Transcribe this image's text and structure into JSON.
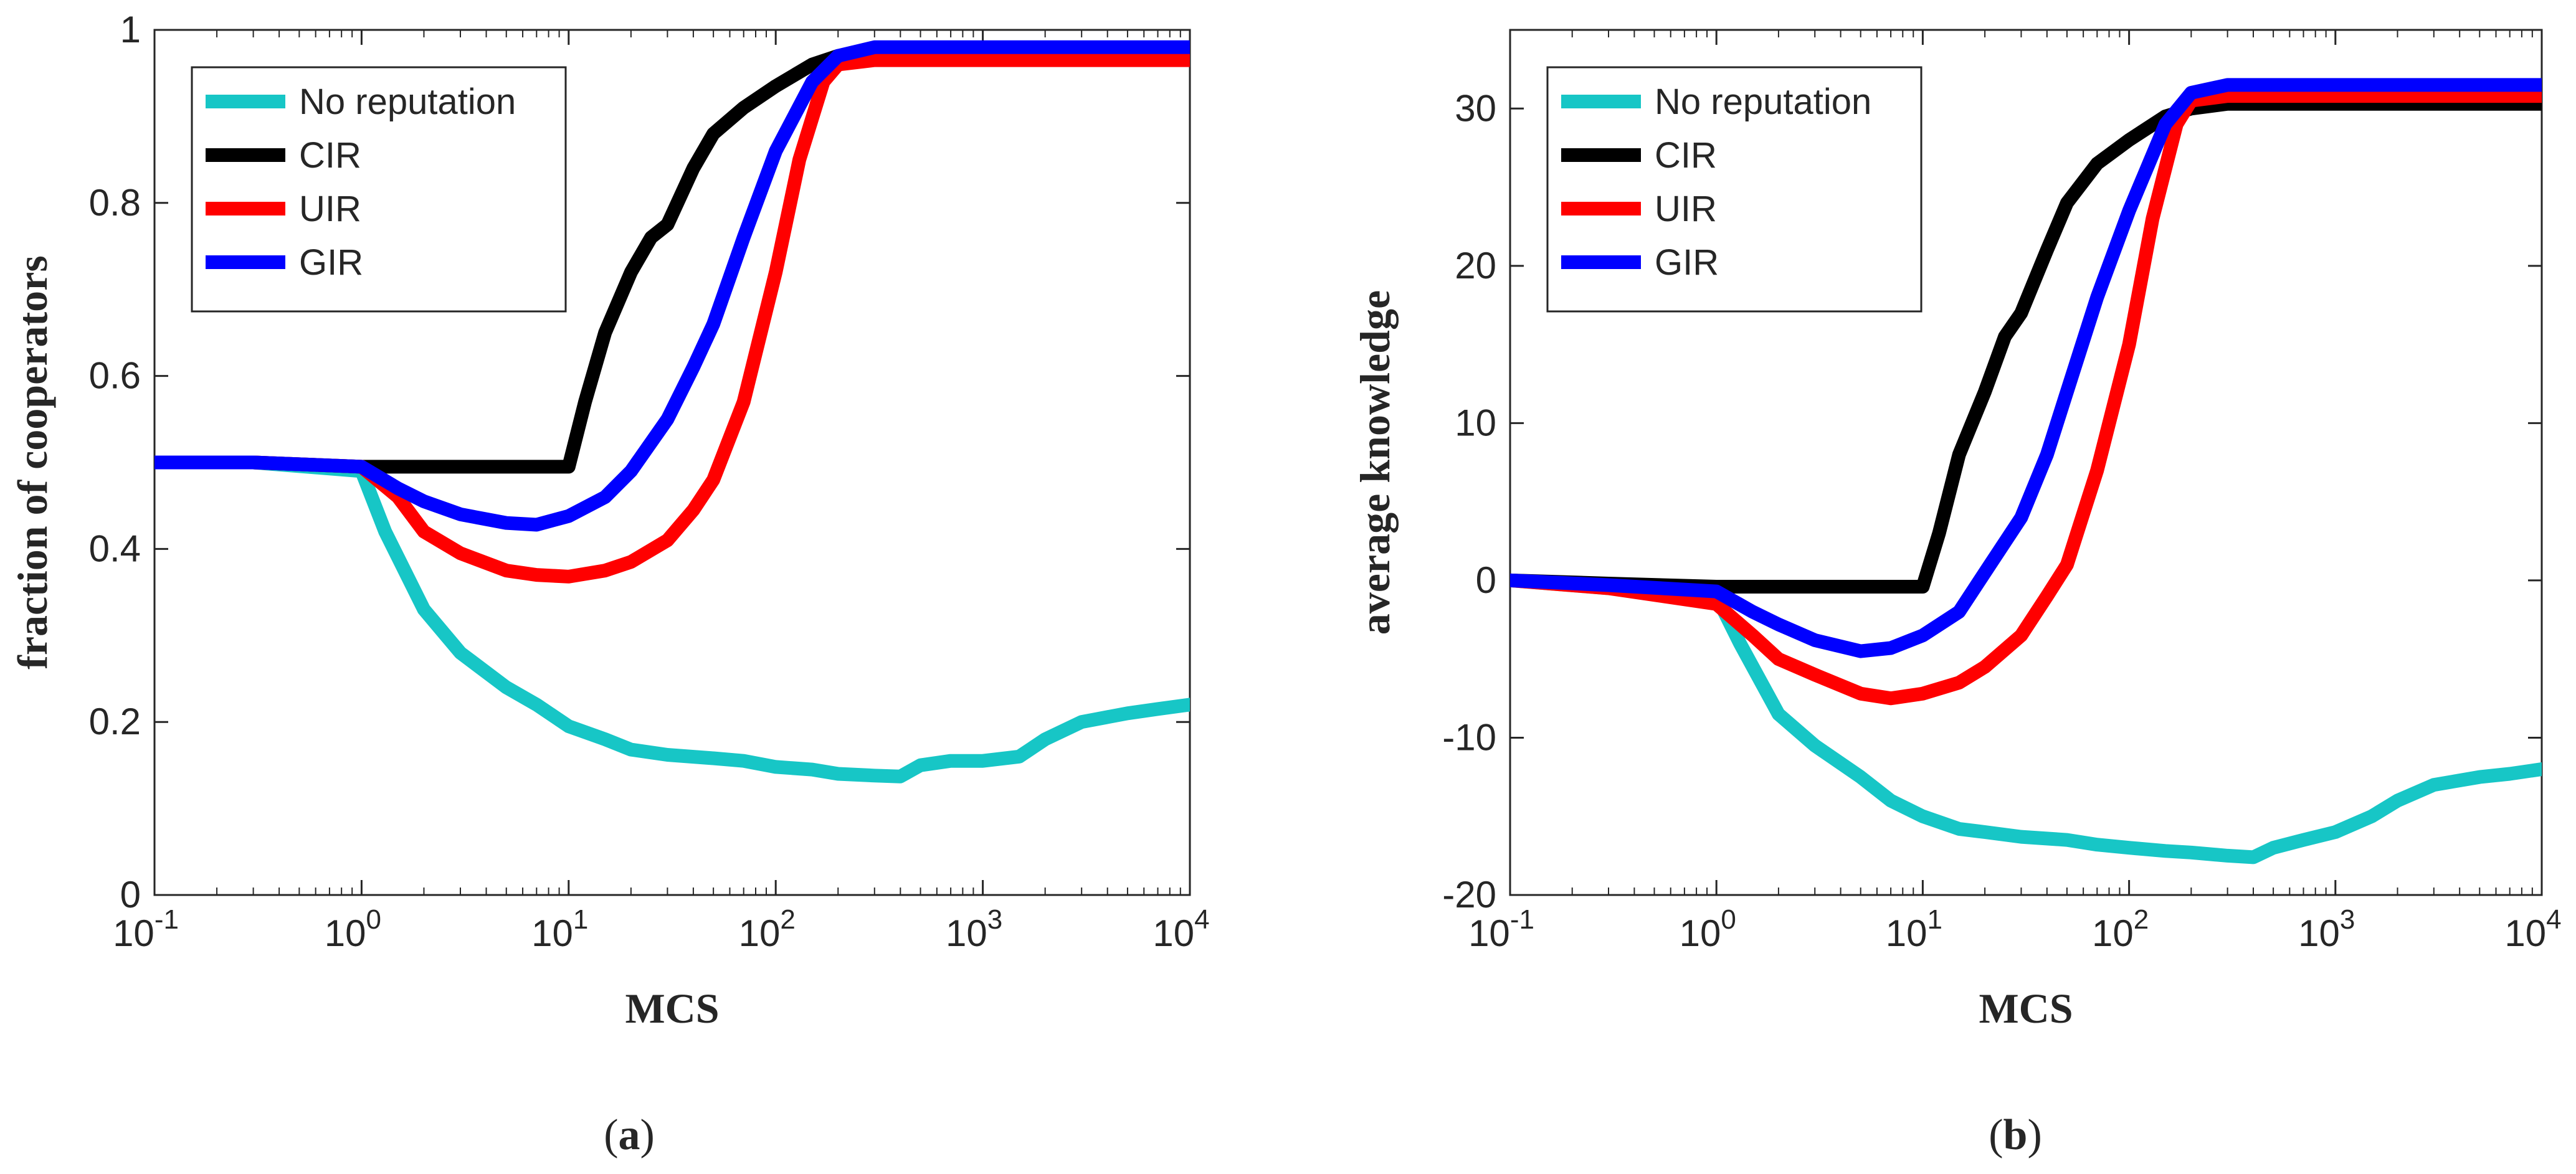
{
  "colors": {
    "no_reputation": "#17c6c6",
    "CIR": "#000000",
    "UIR": "#ff0000",
    "GIR": "#0000ff",
    "axis": "#262626"
  },
  "chart_data": [
    {
      "type": "line",
      "panel": "a",
      "xscale": "log",
      "xlim": [
        0.1,
        10000
      ],
      "ylim": [
        0,
        1
      ],
      "xlabel": "MCS",
      "ylabel": "fraction of cooperators",
      "caption": {
        "open": "(",
        "letter": "a",
        "close": ")"
      },
      "legend_position": "top-left",
      "yticks": [
        {
          "value": 0,
          "label": "0"
        },
        {
          "value": 0.2,
          "label": "0.2"
        },
        {
          "value": 0.4,
          "label": "0.4"
        },
        {
          "value": 0.6,
          "label": "0.6"
        },
        {
          "value": 0.8,
          "label": "0.8"
        },
        {
          "value": 1,
          "label": "1"
        }
      ],
      "xticks": [
        {
          "value": 0.1,
          "base": "10",
          "exp": "-1"
        },
        {
          "value": 1,
          "base": "10",
          "exp": "0"
        },
        {
          "value": 10,
          "base": "10",
          "exp": "1"
        },
        {
          "value": 100,
          "base": "10",
          "exp": "2"
        },
        {
          "value": 1000,
          "base": "10",
          "exp": "3"
        },
        {
          "value": 10000,
          "base": "10",
          "exp": "4"
        }
      ],
      "series": [
        {
          "name": "No reputation",
          "color_key": "no_reputation",
          "x": [
            0.1,
            0.3,
            1,
            1.3,
            2,
            3,
            5,
            7,
            10,
            15,
            20,
            30,
            50,
            70,
            100,
            150,
            200,
            300,
            400,
            500,
            700,
            1000,
            1500,
            2000,
            3000,
            5000,
            7000,
            10000
          ],
          "y": [
            0.5,
            0.5,
            0.49,
            0.42,
            0.33,
            0.28,
            0.24,
            0.22,
            0.195,
            0.18,
            0.168,
            0.162,
            0.158,
            0.155,
            0.148,
            0.145,
            0.14,
            0.138,
            0.137,
            0.15,
            0.155,
            0.155,
            0.16,
            0.18,
            0.2,
            0.21,
            0.215,
            0.22
          ]
        },
        {
          "name": "CIR",
          "color_key": "CIR",
          "x": [
            0.1,
            0.3,
            1,
            2,
            5,
            9,
            10,
            12,
            15,
            20,
            25,
            30,
            40,
            50,
            70,
            100,
            150,
            200,
            300,
            1000,
            10000
          ],
          "y": [
            0.5,
            0.5,
            0.495,
            0.495,
            0.495,
            0.495,
            0.495,
            0.57,
            0.65,
            0.72,
            0.76,
            0.775,
            0.84,
            0.88,
            0.91,
            0.935,
            0.96,
            0.97,
            0.97,
            0.97,
            0.97
          ]
        },
        {
          "name": "UIR",
          "color_key": "UIR",
          "x": [
            0.1,
            0.3,
            1,
            1.5,
            2,
            3,
            5,
            7,
            10,
            15,
            20,
            30,
            40,
            50,
            70,
            100,
            130,
            170,
            200,
            300,
            1000,
            10000
          ],
          "y": [
            0.5,
            0.5,
            0.495,
            0.46,
            0.42,
            0.395,
            0.375,
            0.37,
            0.368,
            0.375,
            0.385,
            0.41,
            0.445,
            0.48,
            0.57,
            0.72,
            0.85,
            0.94,
            0.96,
            0.965,
            0.965,
            0.965
          ]
        },
        {
          "name": "GIR",
          "color_key": "GIR",
          "x": [
            0.1,
            0.3,
            1,
            1.5,
            2,
            3,
            5,
            7,
            10,
            15,
            20,
            30,
            40,
            50,
            70,
            100,
            150,
            200,
            300,
            1000,
            10000
          ],
          "y": [
            0.5,
            0.5,
            0.495,
            0.47,
            0.455,
            0.44,
            0.43,
            0.428,
            0.438,
            0.46,
            0.49,
            0.55,
            0.61,
            0.66,
            0.76,
            0.86,
            0.94,
            0.97,
            0.98,
            0.98,
            0.98
          ]
        }
      ]
    },
    {
      "type": "line",
      "panel": "b",
      "xscale": "log",
      "xlim": [
        0.1,
        10000
      ],
      "ylim": [
        -20,
        35
      ],
      "xlabel": "MCS",
      "ylabel": "average knowledge",
      "caption": {
        "open": "(",
        "letter": "b",
        "close": ")"
      },
      "legend_position": "top-left",
      "yticks": [
        {
          "value": -20,
          "label": "-20"
        },
        {
          "value": -10,
          "label": "-10"
        },
        {
          "value": 0,
          "label": "0"
        },
        {
          "value": 10,
          "label": "10"
        },
        {
          "value": 20,
          "label": "20"
        },
        {
          "value": 30,
          "label": "30"
        }
      ],
      "xticks": [
        {
          "value": 0.1,
          "base": "10",
          "exp": "-1"
        },
        {
          "value": 1,
          "base": "10",
          "exp": "0"
        },
        {
          "value": 10,
          "base": "10",
          "exp": "1"
        },
        {
          "value": 100,
          "base": "10",
          "exp": "2"
        },
        {
          "value": 1000,
          "base": "10",
          "exp": "3"
        },
        {
          "value": 10000,
          "base": "10",
          "exp": "4"
        }
      ],
      "series": [
        {
          "name": "No reputation",
          "color_key": "no_reputation",
          "x": [
            0.1,
            0.3,
            1,
            1.3,
            2,
            3,
            5,
            7,
            10,
            15,
            20,
            30,
            50,
            70,
            100,
            150,
            200,
            300,
            400,
            500,
            700,
            1000,
            1500,
            2000,
            3000,
            5000,
            7000,
            10000
          ],
          "y": [
            0,
            -0.5,
            -1,
            -4,
            -8.5,
            -10.5,
            -12.5,
            -14,
            -15,
            -15.8,
            -16,
            -16.3,
            -16.5,
            -16.8,
            -17,
            -17.2,
            -17.3,
            -17.5,
            -17.6,
            -17,
            -16.5,
            -16,
            -15,
            -14,
            -13,
            -12.5,
            -12.3,
            -12
          ]
        },
        {
          "name": "CIR",
          "color_key": "CIR",
          "x": [
            0.1,
            0.3,
            1,
            2,
            5,
            9,
            10,
            12,
            15,
            20,
            25,
            30,
            40,
            50,
            70,
            100,
            150,
            200,
            300,
            1000,
            10000
          ],
          "y": [
            0,
            -0.2,
            -0.4,
            -0.4,
            -0.4,
            -0.4,
            -0.4,
            3,
            8,
            12,
            15.5,
            17,
            21,
            24,
            26.5,
            28,
            29.5,
            30,
            30.3,
            30.3,
            30.3
          ]
        },
        {
          "name": "UIR",
          "color_key": "UIR",
          "x": [
            0.1,
            0.3,
            1,
            1.5,
            2,
            3,
            5,
            7,
            10,
            15,
            20,
            30,
            40,
            50,
            70,
            100,
            130,
            170,
            200,
            300,
            1000,
            10000
          ],
          "y": [
            0,
            -0.5,
            -1.5,
            -3.5,
            -5,
            -6,
            -7.2,
            -7.5,
            -7.2,
            -6.5,
            -5.5,
            -3.5,
            -1,
            1,
            7,
            15,
            23,
            29,
            30.5,
            30.8,
            30.8,
            30.8
          ]
        },
        {
          "name": "GIR",
          "color_key": "GIR",
          "x": [
            0.1,
            0.3,
            1,
            1.5,
            2,
            3,
            5,
            7,
            10,
            15,
            20,
            30,
            40,
            50,
            70,
            100,
            150,
            200,
            300,
            1000,
            10000
          ],
          "y": [
            0,
            -0.3,
            -0.7,
            -2,
            -2.8,
            -3.8,
            -4.5,
            -4.3,
            -3.5,
            -2,
            0.5,
            4,
            8,
            12,
            18,
            23.5,
            29,
            31,
            31.5,
            31.5,
            31.5
          ]
        }
      ]
    }
  ]
}
